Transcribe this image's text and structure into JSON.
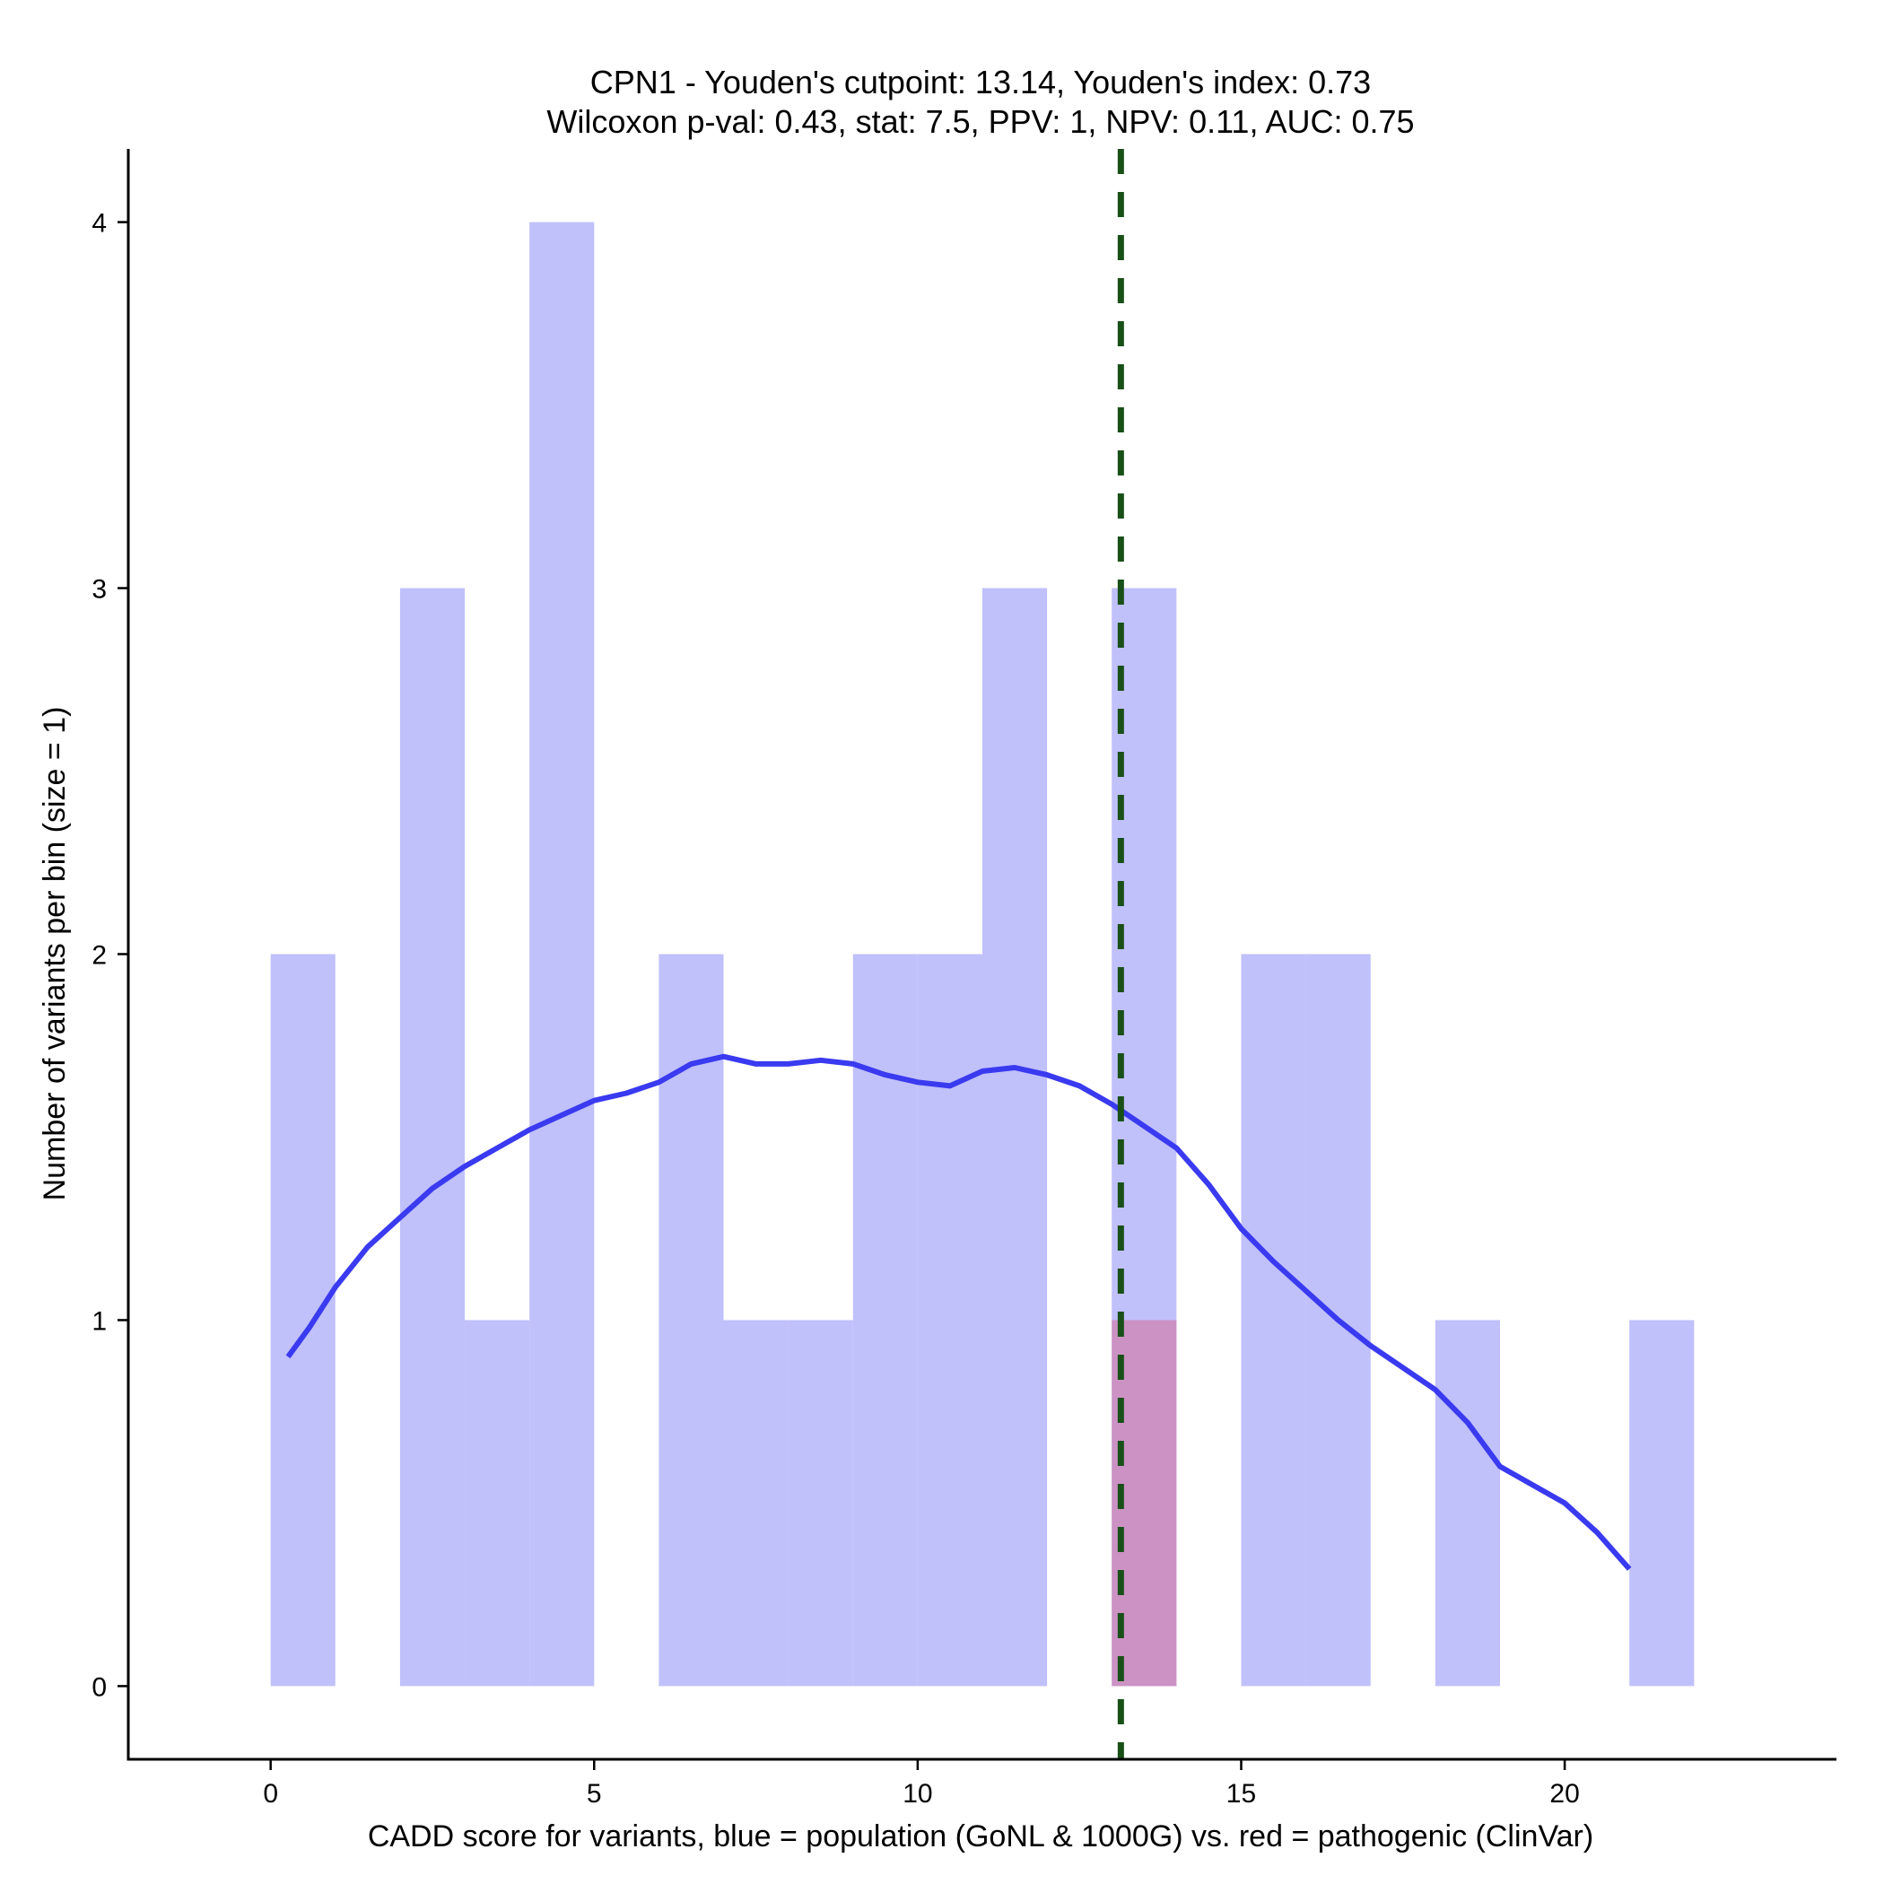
{
  "chart_data": {
    "type": "bar",
    "title_line1": "CPN1 - Youden's cutpoint: 13.14, Youden's index: 0.73",
    "title_line2": "Wilcoxon p-val: 0.43, stat: 7.5, PPV: 1, NPV: 0.11, AUC: 0.75",
    "xlabel": "CADD score for variants, blue = population (GoNL & 1000G) vs. red = pathogenic (ClinVar)",
    "ylabel": "Number of variants per bin (size = 1)",
    "xlim": [
      -2.2,
      24.2
    ],
    "ylim": [
      -0.2,
      4.2
    ],
    "x_ticks": [
      0,
      5,
      10,
      15,
      20
    ],
    "y_ticks": [
      0,
      1,
      2,
      3,
      4
    ],
    "bin_size": 1,
    "series": [
      {
        "name": "population (GoNL & 1000G)",
        "color": "#c0c0fb",
        "bins": [
          {
            "start": 0,
            "count": 2
          },
          {
            "start": 2,
            "count": 3
          },
          {
            "start": 3,
            "count": 1
          },
          {
            "start": 4,
            "count": 4
          },
          {
            "start": 6,
            "count": 2
          },
          {
            "start": 7,
            "count": 1
          },
          {
            "start": 8,
            "count": 1
          },
          {
            "start": 9,
            "count": 2
          },
          {
            "start": 10,
            "count": 2
          },
          {
            "start": 11,
            "count": 3
          },
          {
            "start": 13,
            "count": 3
          },
          {
            "start": 15,
            "count": 2
          },
          {
            "start": 16,
            "count": 2
          },
          {
            "start": 18,
            "count": 1
          },
          {
            "start": 21,
            "count": 1
          }
        ]
      },
      {
        "name": "pathogenic (ClinVar)",
        "color": "#cc92c4",
        "bins": [
          {
            "start": 13,
            "count": 1
          }
        ]
      }
    ],
    "density_curve": {
      "name": "population density",
      "color": "#3a3af0",
      "points": [
        [
          0.27,
          0.9
        ],
        [
          0.6,
          0.98
        ],
        [
          1.0,
          1.09
        ],
        [
          1.5,
          1.2
        ],
        [
          2.0,
          1.28
        ],
        [
          2.5,
          1.36
        ],
        [
          3.0,
          1.42
        ],
        [
          3.5,
          1.47
        ],
        [
          4.0,
          1.52
        ],
        [
          4.5,
          1.56
        ],
        [
          5.0,
          1.6
        ],
        [
          5.5,
          1.62
        ],
        [
          6.0,
          1.65
        ],
        [
          6.5,
          1.7
        ],
        [
          7.0,
          1.72
        ],
        [
          7.5,
          1.7
        ],
        [
          8.0,
          1.7
        ],
        [
          8.5,
          1.71
        ],
        [
          9.0,
          1.7
        ],
        [
          9.5,
          1.67
        ],
        [
          10.0,
          1.65
        ],
        [
          10.5,
          1.64
        ],
        [
          11.0,
          1.68
        ],
        [
          11.5,
          1.69
        ],
        [
          12.0,
          1.67
        ],
        [
          12.5,
          1.64
        ],
        [
          13.0,
          1.59
        ],
        [
          13.5,
          1.53
        ],
        [
          14.0,
          1.47
        ],
        [
          14.5,
          1.37
        ],
        [
          15.0,
          1.25
        ],
        [
          15.5,
          1.16
        ],
        [
          16.0,
          1.08
        ],
        [
          16.5,
          1.0
        ],
        [
          17.0,
          0.93
        ],
        [
          17.5,
          0.87
        ],
        [
          18.0,
          0.81
        ],
        [
          18.5,
          0.72
        ],
        [
          19.0,
          0.6
        ],
        [
          19.5,
          0.55
        ],
        [
          20.0,
          0.5
        ],
        [
          20.5,
          0.42
        ],
        [
          21.0,
          0.32
        ]
      ]
    },
    "cutpoint": {
      "name": "Youden's cutpoint",
      "value": 13.14,
      "color": "#185018"
    }
  }
}
